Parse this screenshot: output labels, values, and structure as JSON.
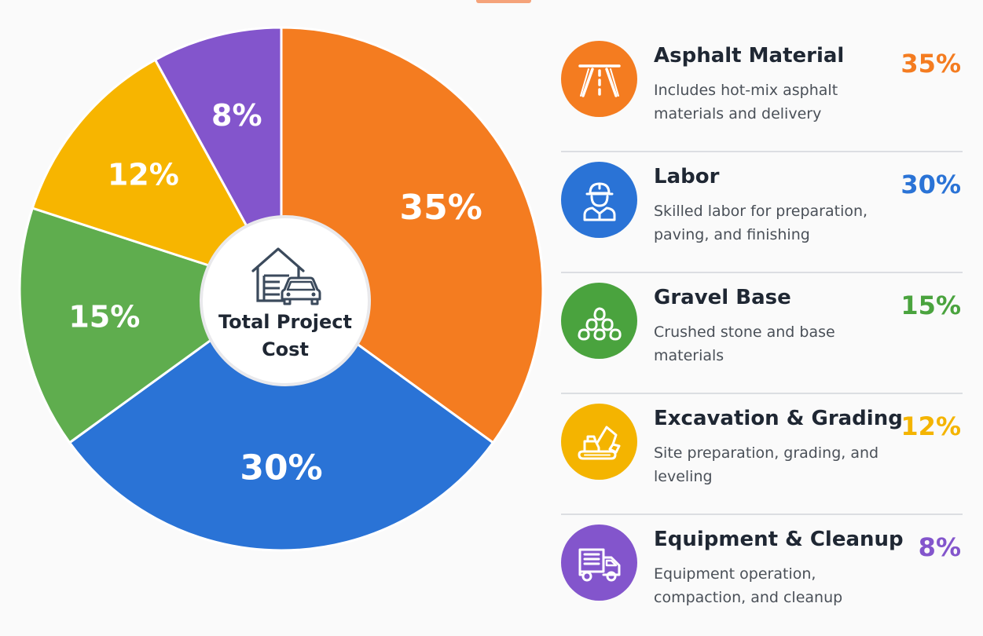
{
  "chart_data": {
    "type": "pie",
    "center_label": "Total Project\nCost",
    "slices": [
      {
        "name": "Asphalt Material",
        "value": 35,
        "label": "35%",
        "color": "#f47c20"
      },
      {
        "name": "Labor",
        "value": 30,
        "label": "30%",
        "color": "#2a73d6"
      },
      {
        "name": "Gravel Base",
        "value": 15,
        "label": "15%",
        "color": "#5fad4e"
      },
      {
        "name": "Excavation & Grading",
        "value": 12,
        "label": "12%",
        "color": "#f7b500"
      },
      {
        "name": "Equipment & Cleanup",
        "value": 8,
        "label": "8%",
        "color": "#8355cc"
      }
    ]
  },
  "legend": {
    "items": [
      {
        "title": "Asphalt Material",
        "desc": "Includes hot-mix asphalt materials and delivery",
        "pct": "35%",
        "color": "#f47c20",
        "icon": "road-icon"
      },
      {
        "title": "Labor",
        "desc": "Skilled labor for preparation, paving, and finishing",
        "pct": "30%",
        "color": "#2a73d6",
        "icon": "worker-icon"
      },
      {
        "title": "Gravel Base",
        "desc": "Crushed stone and base materials",
        "pct": "15%",
        "color": "#4aa33e",
        "icon": "stones-icon"
      },
      {
        "title": "Excavation & Grading",
        "desc": "Site preparation, grading, and leveling",
        "pct": "12%",
        "color": "#f4b400",
        "icon": "excavator-icon"
      },
      {
        "title": "Equipment & Cleanup",
        "desc": "Equipment operation, compaction, and cleanup",
        "pct": "8%",
        "color": "#8355cc",
        "icon": "truck-icon"
      }
    ]
  },
  "center_icon": "garage-car-icon"
}
